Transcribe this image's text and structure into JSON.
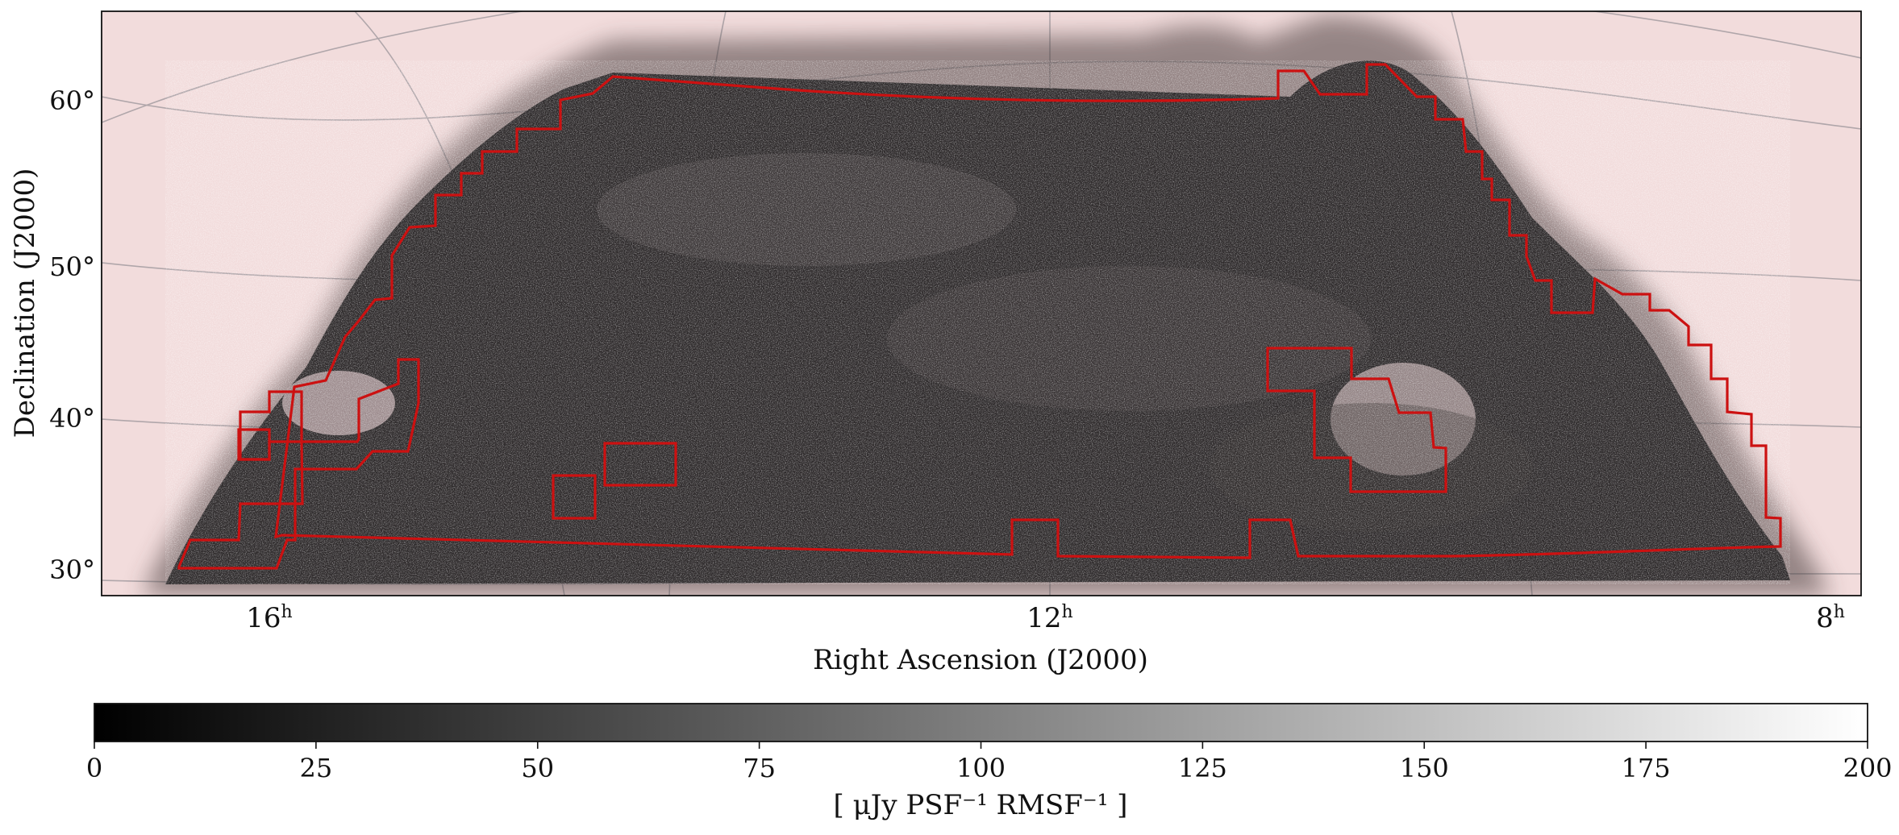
{
  "chart_data": {
    "type": "heatmap",
    "xlabel": "Right Ascension (J2000)",
    "ylabel": "Declination (J2000)",
    "x_ticks": [
      {
        "value": 16,
        "label": "16",
        "unit": "h"
      },
      {
        "value": 12,
        "label": "12",
        "unit": "h"
      },
      {
        "value": 8,
        "label": "8",
        "unit": "h"
      }
    ],
    "y_ticks": [
      {
        "value": 60,
        "label": "60°"
      },
      {
        "value": 50,
        "label": "50°"
      },
      {
        "value": 40,
        "label": "40°"
      },
      {
        "value": 30,
        "label": "30°"
      }
    ],
    "colorbar": {
      "min": 0,
      "max": 200,
      "ticks": [
        "0",
        "25",
        "50",
        "75",
        "100",
        "125",
        "150",
        "175",
        "200"
      ],
      "label": "[ μJy PSF⁻¹ RMSF⁻¹ ]",
      "colormap": "grayscale"
    },
    "colors": {
      "background": "#f2dcdc",
      "footprint_outline": "#cc1111",
      "grid": "#b0a6aa",
      "noise_dark": "#2e2a2b"
    }
  }
}
